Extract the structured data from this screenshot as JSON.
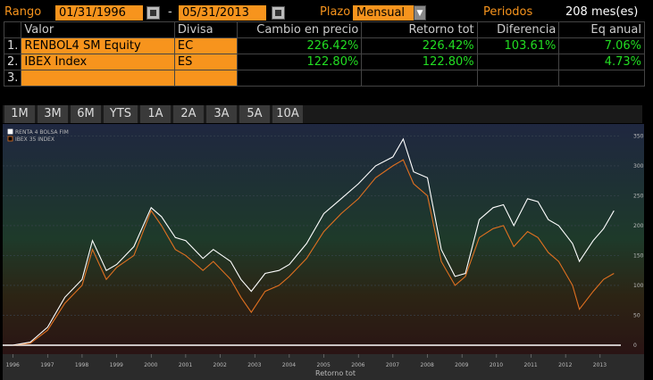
{
  "header": {
    "range_label": "Rango",
    "start_date": "01/31/1996",
    "separator": "-",
    "end_date": "05/31/2013",
    "period_label": "Plazo",
    "period_value": "Mensual",
    "periods_label": "Periodos",
    "periods_value": "208 mes(es)"
  },
  "table": {
    "columns": [
      "Valor",
      "Divisa",
      "Cambio en precio",
      "Retorno tot",
      "Diferencia",
      "Eq anual"
    ],
    "rows": [
      {
        "n": "1.",
        "valor": "RENBOL4 SM Equity",
        "divisa": "EC",
        "cambio": "226.42%",
        "retorno": "226.42%",
        "diferencia": "103.61%",
        "eq": "7.06%"
      },
      {
        "n": "2.",
        "valor": "IBEX Index",
        "divisa": "ES",
        "cambio": "122.80%",
        "retorno": "122.80%",
        "diferencia": "",
        "eq": "4.73%"
      },
      {
        "n": "3.",
        "valor": "",
        "divisa": "",
        "cambio": "",
        "retorno": "",
        "diferencia": "",
        "eq": ""
      }
    ]
  },
  "tabs": [
    "1M",
    "3M",
    "6M",
    "YTS",
    "1A",
    "2A",
    "3A",
    "5A",
    "10A"
  ],
  "colors": {
    "accent": "#f7941d",
    "positive": "#22dd22",
    "series1": "#ffffff",
    "series2": "#e07020"
  },
  "chart_data": {
    "type": "line",
    "xlabel": "Retorno tot",
    "ylabel": "",
    "x_ticks": [
      "1996",
      "1997",
      "1998",
      "1999",
      "2000",
      "2001",
      "2002",
      "2003",
      "2004",
      "2005",
      "2006",
      "2007",
      "2008",
      "2009",
      "2010",
      "2011",
      "2012",
      "2013"
    ],
    "y_ticks": [
      0,
      50,
      100,
      150,
      200,
      250,
      300,
      350
    ],
    "ylim": [
      -15,
      370
    ],
    "legend": "top-left",
    "series": [
      {
        "name": "RENTA 4 BOLSA FIM",
        "x": [
          1996.0,
          1996.5,
          1997.0,
          1997.5,
          1998.0,
          1998.3,
          1998.7,
          1999.0,
          1999.5,
          2000.0,
          2000.3,
          2000.7,
          2001.0,
          2001.5,
          2001.8,
          2002.3,
          2002.6,
          2002.9,
          2003.3,
          2003.7,
          2004.0,
          2004.5,
          2005.0,
          2005.5,
          2006.0,
          2006.5,
          2007.0,
          2007.3,
          2007.6,
          2008.0,
          2008.4,
          2008.8,
          2009.1,
          2009.5,
          2009.9,
          2010.2,
          2010.5,
          2010.9,
          2011.2,
          2011.5,
          2011.8,
          2012.2,
          2012.4,
          2012.8,
          2013.1,
          2013.4
        ],
        "values": [
          0,
          5,
          30,
          80,
          110,
          175,
          125,
          135,
          165,
          230,
          215,
          180,
          175,
          145,
          160,
          140,
          110,
          90,
          120,
          125,
          135,
          170,
          220,
          245,
          270,
          300,
          315,
          345,
          290,
          280,
          160,
          115,
          120,
          210,
          230,
          235,
          200,
          245,
          240,
          210,
          200,
          170,
          140,
          175,
          195,
          225
        ]
      },
      {
        "name": "IBEX 35 INDEX",
        "x": [
          1996.0,
          1996.5,
          1997.0,
          1997.5,
          1998.0,
          1998.3,
          1998.7,
          1999.0,
          1999.5,
          2000.0,
          2000.3,
          2000.7,
          2001.0,
          2001.5,
          2001.8,
          2002.3,
          2002.6,
          2002.9,
          2003.3,
          2003.7,
          2004.0,
          2004.5,
          2005.0,
          2005.5,
          2006.0,
          2006.5,
          2007.0,
          2007.3,
          2007.6,
          2008.0,
          2008.4,
          2008.8,
          2009.1,
          2009.5,
          2009.9,
          2010.2,
          2010.5,
          2010.9,
          2011.2,
          2011.5,
          2011.8,
          2012.2,
          2012.4,
          2012.8,
          2013.1,
          2013.4
        ],
        "values": [
          0,
          3,
          25,
          70,
          100,
          160,
          110,
          130,
          150,
          225,
          200,
          160,
          150,
          125,
          140,
          110,
          80,
          55,
          90,
          100,
          115,
          145,
          190,
          220,
          245,
          280,
          300,
          310,
          270,
          250,
          140,
          100,
          115,
          180,
          195,
          200,
          165,
          190,
          180,
          155,
          140,
          100,
          60,
          90,
          110,
          120
        ]
      }
    ]
  }
}
